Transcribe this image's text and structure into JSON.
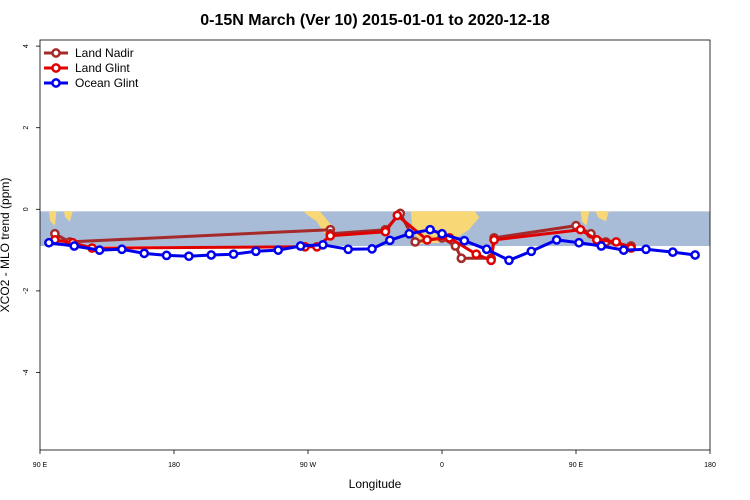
{
  "chart_data": {
    "type": "line",
    "title": "0-15N March (Ver 10)   2015-01-01 to 2020-12-18",
    "xlabel": "Longitude",
    "ylabel": "XCO2 - MLO trend (ppm)",
    "x_ticks": [
      {
        "value": 90,
        "label": "90 E"
      },
      {
        "value": 180,
        "label": "180"
      },
      {
        "value": 270,
        "label": "90 W"
      },
      {
        "value": 360,
        "label": "0"
      },
      {
        "value": 450,
        "label": "90 E"
      },
      {
        "value": 540,
        "label": "180"
      }
    ],
    "y_ticks": [
      {
        "value": 4,
        "label": "4"
      },
      {
        "value": 2,
        "label": "2"
      },
      {
        "value": 0,
        "label": "0"
      },
      {
        "value": -2,
        "label": "-2"
      },
      {
        "value": -4,
        "label": "-4"
      }
    ],
    "xlim": [
      90,
      540
    ],
    "ylim": [
      -5.9,
      4.15
    ],
    "map_band": {
      "y_top": -0.05,
      "y_bottom": -0.9,
      "ocean_color": "#a8bcd8",
      "land_color": "#f8d777"
    },
    "grid": false,
    "legend_position": "top-left",
    "series": [
      {
        "name": "Land Nadir",
        "color": "#a52a2a",
        "points": [
          [
            100,
            -0.6
          ],
          [
            110,
            -0.8
          ],
          [
            285,
            -0.5
          ],
          [
            285,
            -0.6
          ],
          [
            322,
            -0.5
          ],
          [
            332,
            -0.1
          ],
          [
            342,
            -0.8
          ],
          [
            360,
            -0.7
          ],
          [
            369,
            -0.9
          ],
          [
            373,
            -1.2
          ],
          [
            393,
            -1.2
          ],
          [
            395,
            -0.7
          ],
          [
            450,
            -0.4
          ],
          [
            460,
            -0.6
          ],
          [
            470,
            -0.8
          ],
          [
            487,
            -0.9
          ]
        ]
      },
      {
        "name": "Land Glint",
        "color": "#e00000",
        "points": [
          [
            100,
            -0.75
          ],
          [
            112,
            -0.82
          ],
          [
            125,
            -0.95
          ],
          [
            268,
            -0.92
          ],
          [
            276,
            -0.92
          ],
          [
            285,
            -0.65
          ],
          [
            322,
            -0.55
          ],
          [
            330,
            -0.15
          ],
          [
            350,
            -0.75
          ],
          [
            365,
            -0.7
          ],
          [
            383,
            -1.1
          ],
          [
            393,
            -1.25
          ],
          [
            395,
            -0.75
          ],
          [
            453,
            -0.5
          ],
          [
            464,
            -0.75
          ],
          [
            477,
            -0.8
          ],
          [
            487,
            -0.95
          ]
        ]
      },
      {
        "name": "Ocean Glint",
        "color": "#0000ee",
        "points": [
          [
            96,
            -0.82
          ],
          [
            113,
            -0.9
          ],
          [
            130,
            -1.0
          ],
          [
            145,
            -0.98
          ],
          [
            160,
            -1.08
          ],
          [
            175,
            -1.13
          ],
          [
            190,
            -1.15
          ],
          [
            205,
            -1.12
          ],
          [
            220,
            -1.1
          ],
          [
            235,
            -1.03
          ],
          [
            250,
            -1.0
          ],
          [
            265,
            -0.9
          ],
          [
            280,
            -0.87
          ],
          [
            297,
            -0.98
          ],
          [
            313,
            -0.97
          ],
          [
            325,
            -0.76
          ],
          [
            338,
            -0.6
          ],
          [
            352,
            -0.5
          ],
          [
            360,
            -0.6
          ],
          [
            375,
            -0.77
          ],
          [
            390,
            -0.98
          ],
          [
            405,
            -1.25
          ],
          [
            420,
            -1.03
          ],
          [
            437,
            -0.75
          ],
          [
            452,
            -0.82
          ],
          [
            467,
            -0.9
          ],
          [
            482,
            -1.0
          ],
          [
            497,
            -0.98
          ],
          [
            515,
            -1.05
          ],
          [
            530,
            -1.12
          ]
        ]
      }
    ]
  }
}
